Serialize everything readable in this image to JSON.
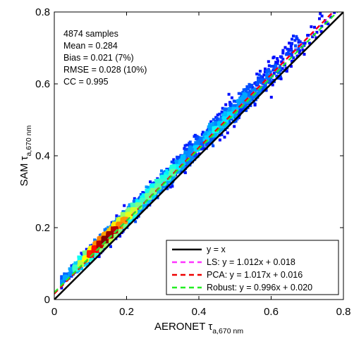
{
  "chart_data": {
    "type": "scatter",
    "title": "",
    "xlabel": {
      "main": "AERONET τ",
      "sub": "a,670 nm"
    },
    "ylabel": {
      "main": "SAM τ",
      "sub": "a,670 nm"
    },
    "xlim": [
      0,
      0.8
    ],
    "ylim": [
      0,
      0.8
    ],
    "xticks": [
      0,
      0.2,
      0.4,
      0.6,
      0.8
    ],
    "yticks": [
      0,
      0.2,
      0.4,
      0.6,
      0.8
    ],
    "xtick_labels": [
      "0",
      "0.2",
      "0.4",
      "0.6",
      "0.8"
    ],
    "ytick_labels": [
      "0",
      "0.2",
      "0.4",
      "0.6",
      "0.8"
    ],
    "grid": false,
    "colormap": "jet (point density)",
    "stats": [
      "4874 samples",
      "Mean = 0.284",
      "Bias = 0.021  (7%)",
      "RMSE = 0.028  (10%)",
      "CC = 0.995"
    ],
    "legend_position": "bottom-right",
    "lines": [
      {
        "name": "y = x",
        "slope": 1.0,
        "intercept": 0.0,
        "color": "#000000",
        "style": "solid"
      },
      {
        "name": "LS: y = 1.012x + 0.018",
        "slope": 1.012,
        "intercept": 0.018,
        "color": "#ff33ff",
        "style": "dashed"
      },
      {
        "name": "PCA: y = 1.017x + 0.016",
        "slope": 1.017,
        "intercept": 0.016,
        "color": "#ee0000",
        "style": "dashed"
      },
      {
        "name": "Robust: y = 0.996x + 0.020",
        "slope": 0.996,
        "intercept": 0.02,
        "color": "#22ee22",
        "style": "dashed"
      }
    ]
  }
}
